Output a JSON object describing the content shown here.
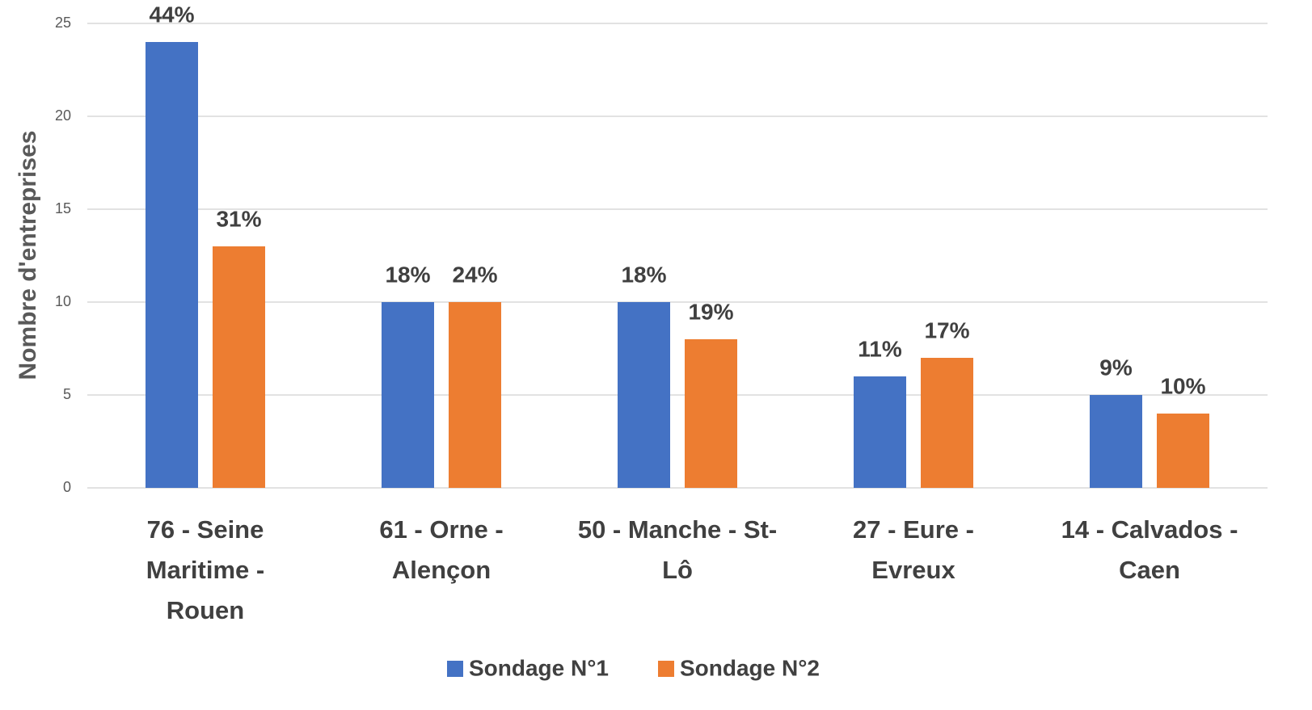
{
  "chart_data": {
    "type": "bar",
    "ylabel": "Nombre d'entreprises",
    "categories": [
      [
        "76 - Seine",
        "Maritime -",
        "Rouen"
      ],
      [
        "61 - Orne -",
        "Alençon"
      ],
      [
        "50 - Manche - St-",
        "Lô"
      ],
      [
        "27 - Eure -",
        "Evreux"
      ],
      [
        "14 - Calvados -",
        "Caen"
      ]
    ],
    "series": [
      {
        "name": "Sondage N°1",
        "color": "#4472c4",
        "values": [
          24,
          10,
          10,
          6,
          5
        ],
        "labels": [
          "44%",
          "18%",
          "18%",
          "11%",
          "9%"
        ]
      },
      {
        "name": "Sondage N°2",
        "color": "#ed7d31",
        "values": [
          13,
          10,
          8,
          7,
          4
        ],
        "labels": [
          "31%",
          "24%",
          "19%",
          "17%",
          "10%"
        ]
      }
    ],
    "ylim": [
      0,
      25
    ],
    "yticks": [
      0,
      5,
      10,
      15,
      20,
      25
    ],
    "grid": true,
    "legend": "bottom"
  }
}
